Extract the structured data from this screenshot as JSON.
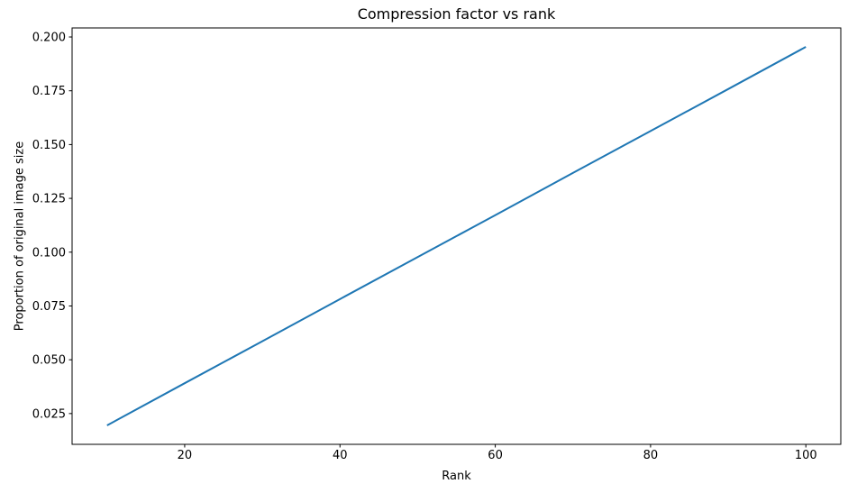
{
  "chart_data": {
    "type": "line",
    "title": "Compression factor vs rank",
    "xlabel": "Rank",
    "ylabel": "Proportion of original image size",
    "x": [
      10,
      20,
      30,
      40,
      50,
      60,
      70,
      80,
      90,
      100
    ],
    "y": [
      0.0195,
      0.0391,
      0.0586,
      0.0782,
      0.0977,
      0.1172,
      0.1368,
      0.1563,
      0.1758,
      0.1954
    ],
    "xticks": [
      20,
      40,
      60,
      80,
      100
    ],
    "yticks": [
      0.025,
      0.05,
      0.075,
      0.1,
      0.125,
      0.15,
      0.175,
      0.2
    ],
    "xlim": [
      5.5,
      104.5
    ],
    "ylim": [
      0.0107,
      0.2042
    ],
    "grid": false,
    "legend": "none",
    "line_color": "#1f77b4",
    "axis_color": "#000000",
    "background_color": "#ffffff"
  }
}
